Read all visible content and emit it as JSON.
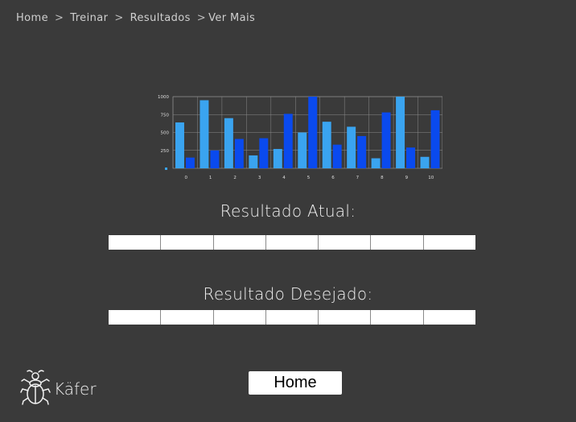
{
  "breadcrumb": {
    "items": [
      "Home",
      "Treinar",
      "Resultados",
      "Ver Mais"
    ],
    "separator": ">"
  },
  "chart_data": {
    "type": "bar",
    "categories": [
      "0",
      "1",
      "2",
      "3",
      "4",
      "5",
      "6",
      "7",
      "8",
      "9",
      "10"
    ],
    "series": [
      {
        "values": [
          640,
          950,
          700,
          180,
          270,
          500,
          650,
          580,
          140,
          1000,
          160
        ]
      },
      {
        "values": [
          150,
          250,
          410,
          420,
          760,
          1000,
          330,
          450,
          780,
          290,
          810
        ]
      }
    ],
    "y_ticks": [
      "1000",
      "750",
      "500",
      "250",
      "0"
    ],
    "ylim": [
      0,
      1000
    ],
    "colors": [
      "#3aa4f0",
      "#0a4aee"
    ],
    "grid": true
  },
  "results": {
    "current_label": "Resultado Atual:",
    "desired_label": "Resultado Desejado:",
    "current_cells": [
      "",
      "",
      "",
      "",
      "",
      "",
      ""
    ],
    "desired_cells": [
      "",
      "",
      "",
      "",
      "",
      "",
      ""
    ]
  },
  "home_button": {
    "label": "Home"
  },
  "logo": {
    "text": "Käfer",
    "icon": "beetle-icon"
  }
}
